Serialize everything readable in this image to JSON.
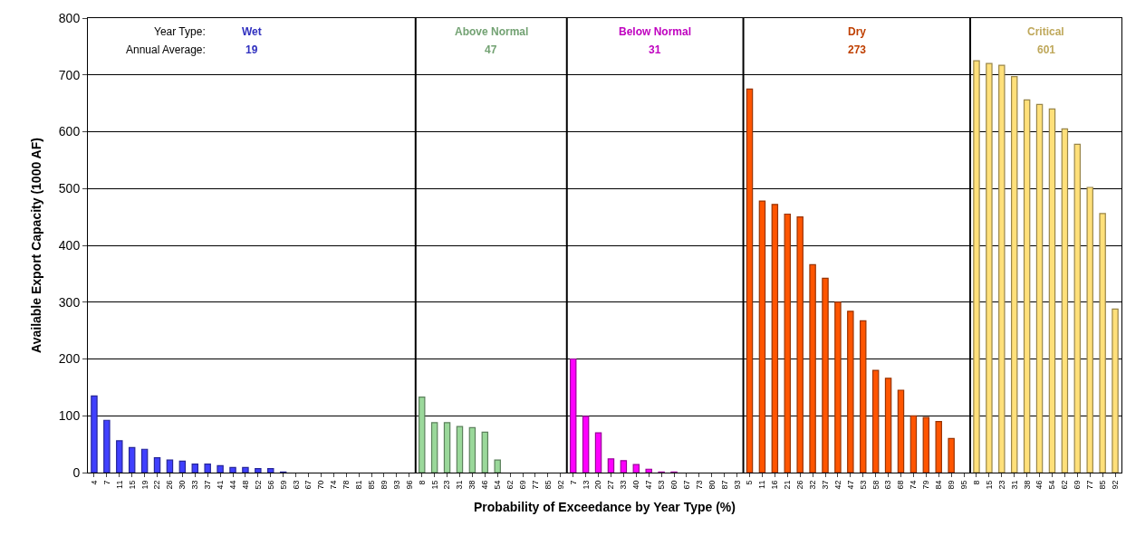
{
  "chart_data": {
    "type": "bar",
    "xlabel": "Probability of Exceedance by Year Type (%)",
    "ylabel": "Available Export Capacity (1000 AF)",
    "categories": [
      "4",
      "7",
      "11",
      "15",
      "19",
      "22",
      "26",
      "30",
      "33",
      "37",
      "41",
      "44",
      "48",
      "52",
      "56",
      "59",
      "63",
      "67",
      "70",
      "74",
      "78",
      "81",
      "85",
      "89",
      "93",
      "96",
      "8",
      "15",
      "23",
      "31",
      "38",
      "46",
      "54",
      "62",
      "69",
      "77",
      "85",
      "92",
      "7",
      "13",
      "20",
      "27",
      "33",
      "40",
      "47",
      "53",
      "60",
      "67",
      "73",
      "80",
      "87",
      "93",
      "5",
      "11",
      "16",
      "21",
      "26",
      "32",
      "37",
      "42",
      "47",
      "53",
      "58",
      "63",
      "68",
      "74",
      "79",
      "84",
      "89",
      "95",
      "8",
      "15",
      "23",
      "31",
      "38",
      "46",
      "54",
      "62",
      "69",
      "77",
      "85",
      "92"
    ],
    "series": [
      {
        "name": "Wet",
        "color": "#4040ff",
        "values": [
          135,
          92,
          56,
          44,
          41,
          26,
          22,
          20,
          15,
          15,
          12,
          9,
          9,
          7,
          7,
          1,
          0,
          0,
          0,
          0,
          0,
          0,
          0,
          0,
          0,
          0,
          null,
          null,
          null,
          null,
          null,
          null,
          null,
          null,
          null,
          null,
          null,
          null,
          null,
          null,
          null,
          null,
          null,
          null,
          null,
          null,
          null,
          null,
          null,
          null,
          null,
          null,
          null,
          null,
          null,
          null,
          null,
          null,
          null,
          null,
          null,
          null,
          null,
          null,
          null,
          null,
          null,
          null,
          null,
          null,
          null,
          null,
          null,
          null,
          null,
          null,
          null,
          null,
          null,
          null,
          null,
          null
        ]
      },
      {
        "name": "Above Normal",
        "color": "#9ad89a",
        "values": [
          null,
          null,
          null,
          null,
          null,
          null,
          null,
          null,
          null,
          null,
          null,
          null,
          null,
          null,
          null,
          null,
          null,
          null,
          null,
          null,
          null,
          null,
          null,
          null,
          null,
          null,
          133,
          88,
          88,
          81,
          79,
          71,
          22,
          0,
          0,
          0,
          0,
          0,
          null,
          null,
          null,
          null,
          null,
          null,
          null,
          null,
          null,
          null,
          null,
          null,
          null,
          null,
          null,
          null,
          null,
          null,
          null,
          null,
          null,
          null,
          null,
          null,
          null,
          null,
          null,
          null,
          null,
          null,
          null,
          null,
          null,
          null,
          null,
          null,
          null,
          null,
          null,
          null,
          null,
          null,
          null,
          null
        ]
      },
      {
        "name": "Below Normal",
        "color": "#ff00ff",
        "values": [
          null,
          null,
          null,
          null,
          null,
          null,
          null,
          null,
          null,
          null,
          null,
          null,
          null,
          null,
          null,
          null,
          null,
          null,
          null,
          null,
          null,
          null,
          null,
          null,
          null,
          null,
          null,
          null,
          null,
          null,
          null,
          null,
          null,
          null,
          null,
          null,
          null,
          null,
          200,
          99,
          70,
          24,
          21,
          14,
          6,
          1,
          1,
          0,
          0,
          0,
          0,
          0,
          null,
          null,
          null,
          null,
          null,
          null,
          null,
          null,
          null,
          null,
          null,
          null,
          null,
          null,
          null,
          null,
          null,
          null,
          null,
          null,
          null,
          null,
          null,
          null,
          null,
          null,
          null,
          null,
          null,
          null
        ]
      },
      {
        "name": "Dry",
        "color": "#ff5500",
        "values": [
          null,
          null,
          null,
          null,
          null,
          null,
          null,
          null,
          null,
          null,
          null,
          null,
          null,
          null,
          null,
          null,
          null,
          null,
          null,
          null,
          null,
          null,
          null,
          null,
          null,
          null,
          null,
          null,
          null,
          null,
          null,
          null,
          null,
          null,
          null,
          null,
          null,
          null,
          null,
          null,
          null,
          null,
          null,
          null,
          null,
          null,
          null,
          null,
          null,
          null,
          null,
          null,
          675,
          478,
          472,
          455,
          450,
          366,
          342,
          300,
          284,
          267,
          180,
          166,
          145,
          100,
          97,
          90,
          60,
          0,
          null,
          null,
          null,
          null,
          null,
          null,
          null,
          null,
          null,
          null,
          null,
          null
        ]
      },
      {
        "name": "Critical",
        "color": "#ffe07a",
        "values": [
          null,
          null,
          null,
          null,
          null,
          null,
          null,
          null,
          null,
          null,
          null,
          null,
          null,
          null,
          null,
          null,
          null,
          null,
          null,
          null,
          null,
          null,
          null,
          null,
          null,
          null,
          null,
          null,
          null,
          null,
          null,
          null,
          null,
          null,
          null,
          null,
          null,
          null,
          null,
          null,
          null,
          null,
          null,
          null,
          null,
          null,
          null,
          null,
          null,
          null,
          null,
          null,
          null,
          null,
          null,
          null,
          null,
          null,
          null,
          null,
          null,
          null,
          null,
          null,
          null,
          null,
          null,
          null,
          null,
          null,
          725,
          720,
          717,
          697,
          656,
          648,
          640,
          605,
          578,
          502,
          456,
          288
        ]
      }
    ],
    "ylim": [
      0,
      800
    ],
    "yticks": [
      0,
      100,
      200,
      300,
      400,
      500,
      600,
      700,
      800
    ],
    "grid": "y",
    "legend": false,
    "annotations": [
      "Year Type:",
      "Annual Average:",
      "19",
      "47",
      "31",
      "273",
      "601"
    ]
  }
}
